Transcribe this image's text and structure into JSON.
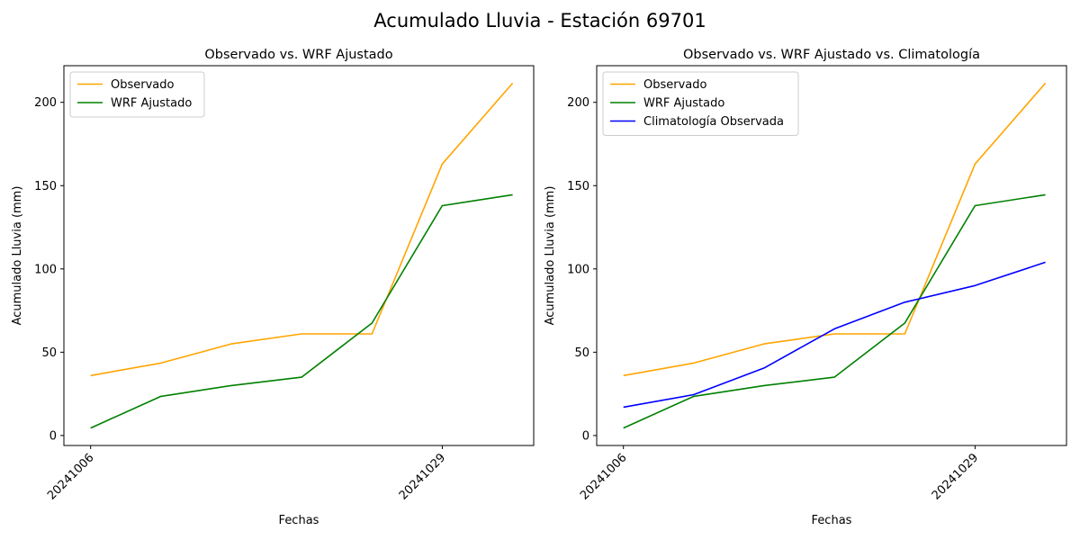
{
  "figure": {
    "suptitle": "Acumulado Lluvia - Estación 69701"
  },
  "chart_data": [
    {
      "type": "line",
      "title": "Observado vs. WRF Ajustado",
      "xlabel": "Fechas",
      "ylabel": "Acumulado Lluvia (mm)",
      "x_index": [
        0,
        1,
        2,
        3,
        4,
        5,
        6
      ],
      "xtick_labels": [
        {
          "index": 0,
          "label": "20241006"
        },
        {
          "index": 5,
          "label": "20241029"
        }
      ],
      "yticks": [
        0,
        50,
        100,
        150,
        200
      ],
      "ylim": [
        -6,
        222
      ],
      "xlim": [
        -0.38,
        6.3
      ],
      "legend": "top-left",
      "grid": false,
      "series": [
        {
          "name": "Observado",
          "color": "#ffa500",
          "values": [
            36,
            43.5,
            55,
            61,
            61,
            163,
            211.5
          ]
        },
        {
          "name": "WRF Ajustado",
          "color": "#008000",
          "values": [
            4.5,
            23.5,
            30,
            35,
            67.5,
            138,
            144.5
          ]
        }
      ]
    },
    {
      "type": "line",
      "title": "Observado vs. WRF Ajustado vs. Climatología",
      "xlabel": "Fechas",
      "ylabel": "Acumulado Lluvia (mm)",
      "x_index": [
        0,
        1,
        2,
        3,
        4,
        5,
        6
      ],
      "xtick_labels": [
        {
          "index": 0,
          "label": "20241006"
        },
        {
          "index": 5,
          "label": "20241029"
        }
      ],
      "yticks": [
        0,
        50,
        100,
        150,
        200
      ],
      "ylim": [
        -6,
        222
      ],
      "xlim": [
        -0.38,
        6.3
      ],
      "legend": "top-left",
      "grid": false,
      "series": [
        {
          "name": "Observado",
          "color": "#ffa500",
          "values": [
            36,
            43.5,
            55,
            61,
            61,
            163,
            211.5
          ]
        },
        {
          "name": "WRF Ajustado",
          "color": "#008000",
          "values": [
            4.5,
            23.5,
            30,
            35,
            67.5,
            138,
            144.5
          ]
        },
        {
          "name": "Climatología Observada",
          "color": "#0000ff",
          "values": [
            17,
            24.5,
            40.5,
            64,
            80,
            90,
            104
          ]
        }
      ]
    }
  ]
}
